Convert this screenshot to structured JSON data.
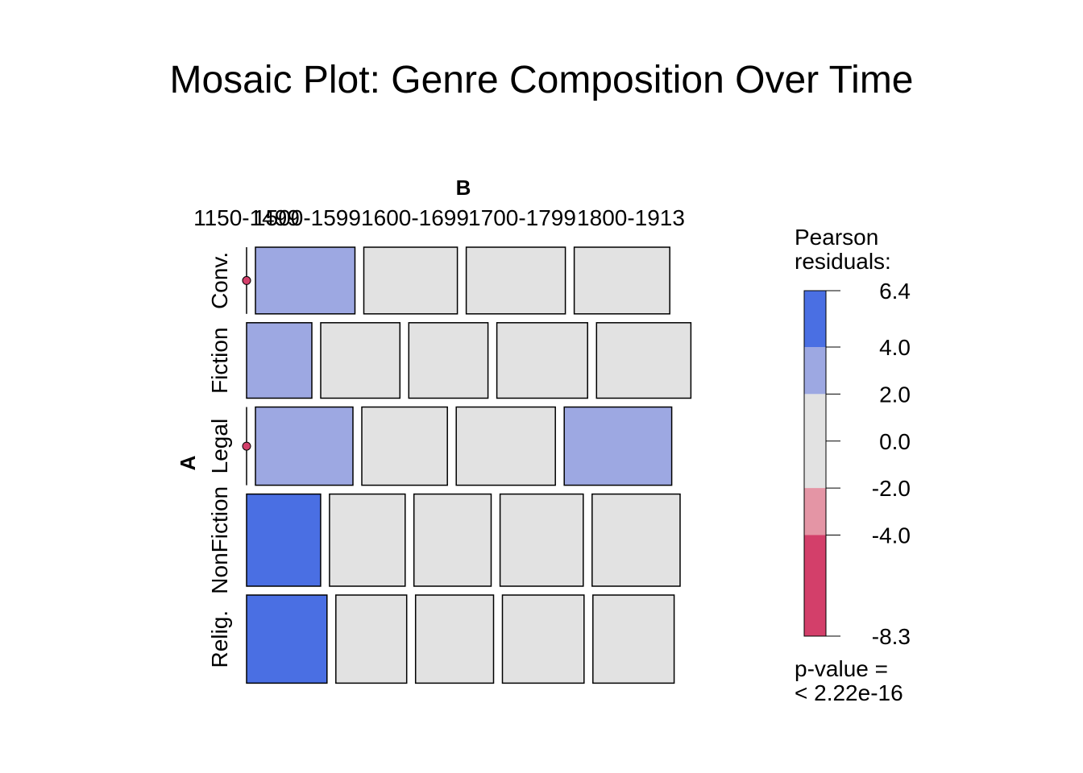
{
  "chart_data": {
    "type": "mosaic",
    "title": "Mosaic Plot: Genre Composition Over Time",
    "row_variable": "A",
    "column_variable": "B",
    "column_labels": [
      "1150-1499",
      "1500-1599",
      "1600-1699",
      "1700-1799",
      "1800-1913"
    ],
    "rows": [
      {
        "label": "Conv.",
        "proportion": 0.168,
        "cells": [
          {
            "column": "1150-1499",
            "width_share": 0.0,
            "residual_band": "zero"
          },
          {
            "column": "1500-1599",
            "width_share": 0.25,
            "residual_band": "2 to 4"
          },
          {
            "column": "1600-1699",
            "width_share": 0.235,
            "residual_band": "-2 to 2"
          },
          {
            "column": "1700-1799",
            "width_share": 0.249,
            "residual_band": "-2 to 2"
          },
          {
            "column": "1800-1913",
            "width_share": 0.24,
            "residual_band": "-2 to 2"
          }
        ]
      },
      {
        "label": "Fiction",
        "proportion": 0.19,
        "cells": [
          {
            "column": "1150-1499",
            "width_share": 0.164,
            "residual_band": "2 to 4"
          },
          {
            "column": "1500-1599",
            "width_share": 0.199,
            "residual_band": "-2 to 2"
          },
          {
            "column": "1600-1699",
            "width_share": 0.199,
            "residual_band": "-2 to 2"
          },
          {
            "column": "1700-1799",
            "width_share": 0.228,
            "residual_band": "-2 to 2"
          },
          {
            "column": "1800-1913",
            "width_share": 0.237,
            "residual_band": "-2 to 2"
          }
        ]
      },
      {
        "label": "Legal",
        "proportion": 0.197,
        "cells": [
          {
            "column": "1150-1499",
            "width_share": 0.0,
            "residual_band": "zero"
          },
          {
            "column": "1500-1599",
            "width_share": 0.245,
            "residual_band": "2 to 4"
          },
          {
            "column": "1600-1699",
            "width_share": 0.215,
            "residual_band": "-2 to 2"
          },
          {
            "column": "1700-1799",
            "width_share": 0.249,
            "residual_band": "-2 to 2"
          },
          {
            "column": "1800-1913",
            "width_share": 0.27,
            "residual_band": "2 to 4"
          }
        ]
      },
      {
        "label": "NonFiction",
        "proportion": 0.232,
        "cells": [
          {
            "column": "1150-1499",
            "width_share": 0.186,
            "residual_band": "> 4"
          },
          {
            "column": "1500-1599",
            "width_share": 0.19,
            "residual_band": "-2 to 2"
          },
          {
            "column": "1600-1699",
            "width_share": 0.194,
            "residual_band": "-2 to 2"
          },
          {
            "column": "1700-1799",
            "width_share": 0.209,
            "residual_band": "-2 to 2"
          },
          {
            "column": "1800-1913",
            "width_share": 0.221,
            "residual_band": "-2 to 2"
          }
        ]
      },
      {
        "label": "Relig.",
        "proportion": 0.222,
        "cells": [
          {
            "column": "1150-1499",
            "width_share": 0.202,
            "residual_band": "> 4"
          },
          {
            "column": "1500-1599",
            "width_share": 0.178,
            "residual_band": "-2 to 2"
          },
          {
            "column": "1600-1699",
            "width_share": 0.196,
            "residual_band": "-2 to 2"
          },
          {
            "column": "1700-1799",
            "width_share": 0.205,
            "residual_band": "-2 to 2"
          },
          {
            "column": "1800-1913",
            "width_share": 0.204,
            "residual_band": "-2 to 2"
          }
        ]
      }
    ],
    "legend": {
      "title_lines": [
        "Pearson",
        "residuals:"
      ],
      "min": -8.3,
      "max": 6.4,
      "tick_values": [
        6.4,
        4.0,
        2.0,
        0.0,
        -2.0,
        -4.0,
        -8.3
      ],
      "tick_labels": [
        "6.4",
        "4.0",
        "2.0",
        "0.0",
        "-2.0",
        "-4.0",
        "-8.3"
      ],
      "bands": [
        {
          "from": 4.0,
          "to": 6.4,
          "color": "#4a6fe3"
        },
        {
          "from": 2.0,
          "to": 4.0,
          "color": "#9da8e2"
        },
        {
          "from": -2.0,
          "to": 2.0,
          "color": "#e2e2e2"
        },
        {
          "from": -4.0,
          "to": -2.0,
          "color": "#e495a5"
        },
        {
          "from": -8.3,
          "to": -4.0,
          "color": "#d33f6a"
        }
      ],
      "pvalue_lines": [
        "p-value =",
        "< 2.22e-16"
      ]
    },
    "colors": {
      "strong_positive": "#4a6fe3",
      "positive": "#9da8e2",
      "neutral": "#e2e2e2",
      "zero_cell_marker": "#d33f6a"
    }
  }
}
